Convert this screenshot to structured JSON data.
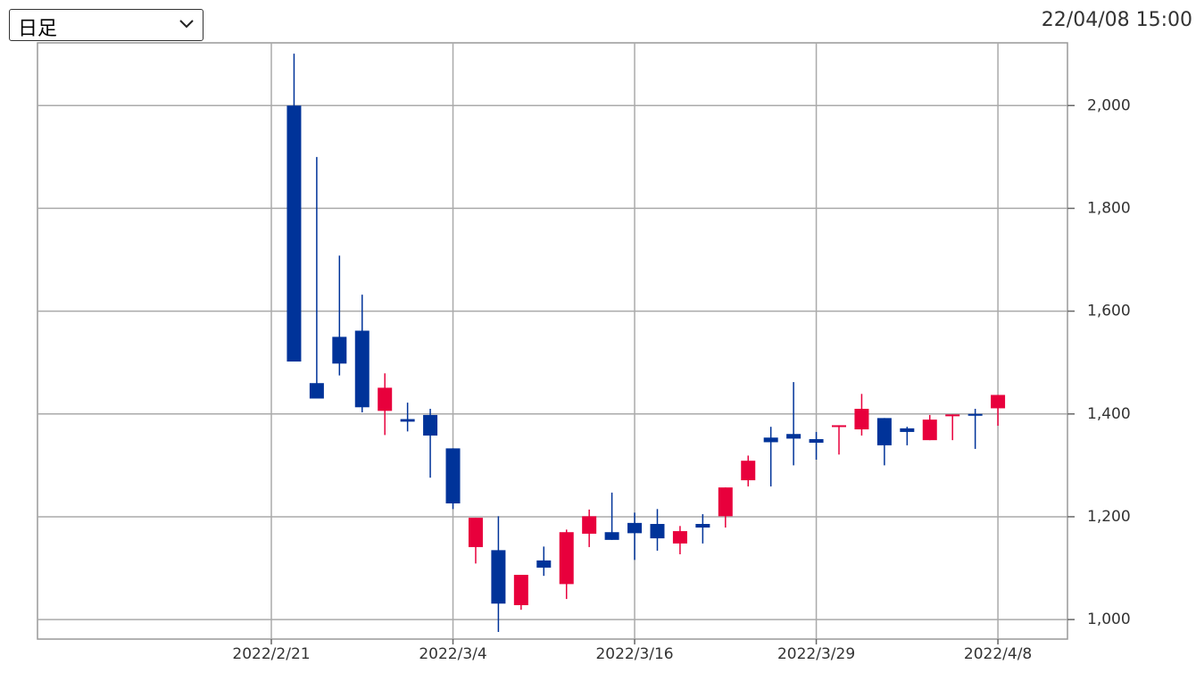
{
  "header": {
    "period": "日足",
    "timestamp": "22/04/08 15:00"
  },
  "chart_data": {
    "type": "candlestick",
    "categories": [
      "2022/2/21",
      null,
      null,
      null,
      null,
      null,
      null,
      null,
      "2022/3/4",
      null,
      null,
      null,
      null,
      null,
      null,
      null,
      "2022/3/16",
      null,
      null,
      null,
      null,
      null,
      null,
      null,
      "2022/3/29",
      null,
      null,
      null,
      null,
      null,
      null,
      null,
      "2022/4/8"
    ],
    "open": [
      null,
      2000,
      1460,
      1550,
      1562,
      1406,
      1390,
      1398,
      1333,
      1141,
      1135,
      1028,
      1115,
      1069,
      1167,
      1170,
      1188,
      1186,
      1148,
      1186,
      1201,
      1271,
      1354,
      1361,
      1351,
      1376,
      1370,
      1392,
      1372,
      1349,
      1397,
      1400,
      1411
    ],
    "high": [
      null,
      2101,
      1900,
      1708,
      1632,
      1479,
      1422,
      1410,
      1333,
      1198,
      1201,
      1087,
      1142,
      1175,
      1214,
      1247,
      1208,
      1215,
      1182,
      1205,
      1257,
      1319,
      1375,
      1462,
      1365,
      1378,
      1439,
      1392,
      1375,
      1398,
      1399,
      1410,
      1437
    ],
    "low": [
      null,
      1502,
      1430,
      1475,
      1403,
      1359,
      1366,
      1276,
      1215,
      1109,
      976,
      1019,
      1085,
      1040,
      1141,
      1155,
      1116,
      1134,
      1127,
      1148,
      1179,
      1259,
      1259,
      1300,
      1311,
      1321,
      1358,
      1300,
      1339,
      1349,
      1349,
      1332,
      1377
    ],
    "close": [
      null,
      1502,
      1430,
      1498,
      1413,
      1451,
      1385,
      1358,
      1226,
      1198,
      1031,
      1087,
      1101,
      1170,
      1201,
      1155,
      1168,
      1158,
      1172,
      1179,
      1257,
      1309,
      1345,
      1352,
      1344,
      1378,
      1410,
      1339,
      1365,
      1389,
      1399,
      1398,
      1437
    ],
    "up_color": "#e8003c",
    "down_color": "#003399",
    "ylim": [
      962,
      2122
    ],
    "yticks": [
      {
        "value": 1000,
        "label": "1,000"
      },
      {
        "value": 1200,
        "label": "1,200"
      },
      {
        "value": 1400,
        "label": "1,400"
      },
      {
        "value": 1600,
        "label": "1,600"
      },
      {
        "value": 1800,
        "label": "1,800"
      },
      {
        "value": 2000,
        "label": "2,000"
      }
    ],
    "grid": true,
    "y_axis_side": "right"
  }
}
